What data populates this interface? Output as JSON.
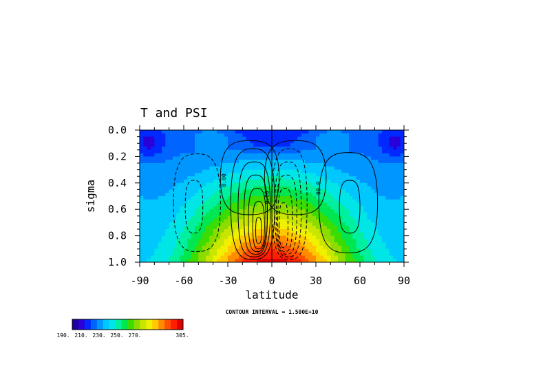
{
  "chart_data": {
    "type": "heatmap",
    "title": "T and PSI",
    "xlabel": "latitude",
    "ylabel": "sigma",
    "xlim": [
      -90,
      90
    ],
    "ylim": [
      0.0,
      1.0
    ],
    "y_inverted": true,
    "x_ticks": [
      "-90",
      "-60",
      "-30",
      "0",
      "30",
      "60",
      "90"
    ],
    "y_ticks": [
      "0.0",
      "0.2",
      "0.4",
      "0.6",
      "0.8",
      "1.0"
    ],
    "field_T": {
      "name": "T",
      "colorbar_labels": [
        "190.",
        "210.",
        "230.",
        "250.",
        "270.",
        "305."
      ],
      "cmin": 190,
      "cmax": 305,
      "colorscale": [
        "#1e00a0",
        "#2a00d8",
        "#0028ff",
        "#0064ff",
        "#0096ff",
        "#00c8ff",
        "#00e6e6",
        "#00f0a0",
        "#00e650",
        "#3cdc00",
        "#8cdc00",
        "#c8e600",
        "#f0f000",
        "#ffc800",
        "#ff8c00",
        "#ff5000",
        "#ff1e00",
        "#dc0000"
      ]
    },
    "field_PSI": {
      "name": "PSI",
      "contour_interval": "CONTOUR INTERVAL = 1.500E+10",
      "contour_labels": [
        "0.00",
        "0.00",
        "00.0",
        "0.00"
      ]
    }
  }
}
